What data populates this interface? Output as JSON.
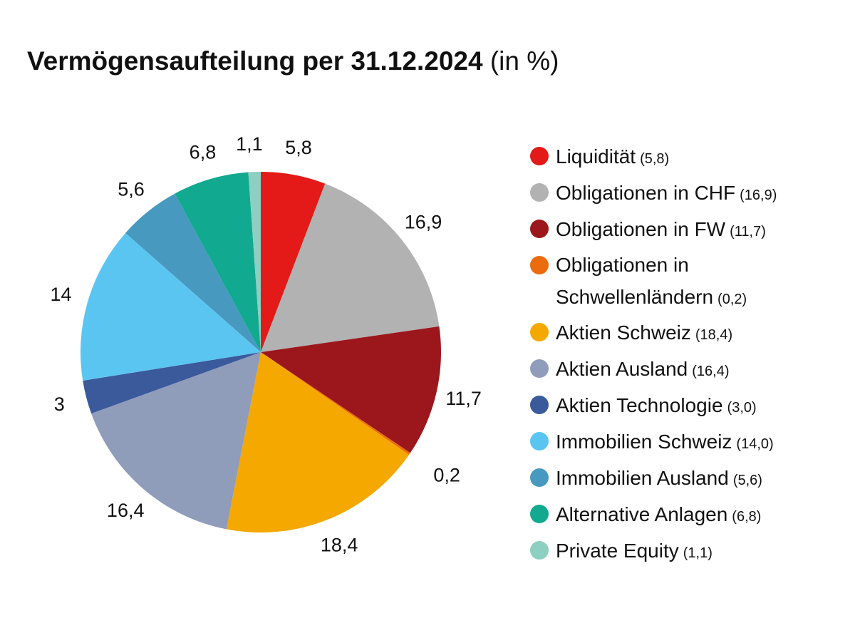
{
  "chart_data": {
    "type": "pie",
    "title": "Vermögensaufteilung per 31.12.2024",
    "title_suffix": "(in %)",
    "start_angle": "top",
    "direction": "clockwise",
    "slices": [
      {
        "name": "Liquidität",
        "value": 5.8,
        "label": "5,8",
        "legend_value": "(5,8)",
        "color": "#e31a17"
      },
      {
        "name": "Obligationen in CHF",
        "value": 16.9,
        "label": "16,9",
        "legend_value": "(16,9)",
        "color": "#b2b2b2"
      },
      {
        "name": "Obligationen in FW",
        "value": 11.7,
        "label": "11,7",
        "legend_value": "(11,7)",
        "color": "#9c171b"
      },
      {
        "name": "Obligationen in Schwellenländern",
        "legend_lines": [
          "Obligationen in",
          "Schwellenländern"
        ],
        "value": 0.2,
        "label": "0,2",
        "legend_value": "(0,2)",
        "color": "#ec6b0e"
      },
      {
        "name": "Aktien Schweiz",
        "value": 18.4,
        "label": "18,4",
        "legend_value": "(18,4)",
        "color": "#f4a800"
      },
      {
        "name": "Aktien Ausland",
        "value": 16.4,
        "label": "16,4",
        "legend_value": "(16,4)",
        "color": "#8f9cba"
      },
      {
        "name": "Aktien Technologie",
        "value": 3.0,
        "label": "3",
        "legend_value": "(3,0)",
        "color": "#3b5a9c"
      },
      {
        "name": "Immobilien Schweiz",
        "value": 14.0,
        "label": "14",
        "legend_value": "(14,0)",
        "color": "#5bc5f1"
      },
      {
        "name": "Immobilien Ausland",
        "value": 5.6,
        "label": "5,6",
        "legend_value": "(5,6)",
        "color": "#4799bf"
      },
      {
        "name": "Alternative Anlagen",
        "value": 6.8,
        "label": "6,8",
        "legend_value": "(6,8)",
        "color": "#11a98f"
      },
      {
        "name": "Private Equity",
        "value": 1.1,
        "label": "1,1",
        "legend_value": "(1,1)",
        "color": "#8dcfc0"
      }
    ],
    "legend_position": "right"
  }
}
